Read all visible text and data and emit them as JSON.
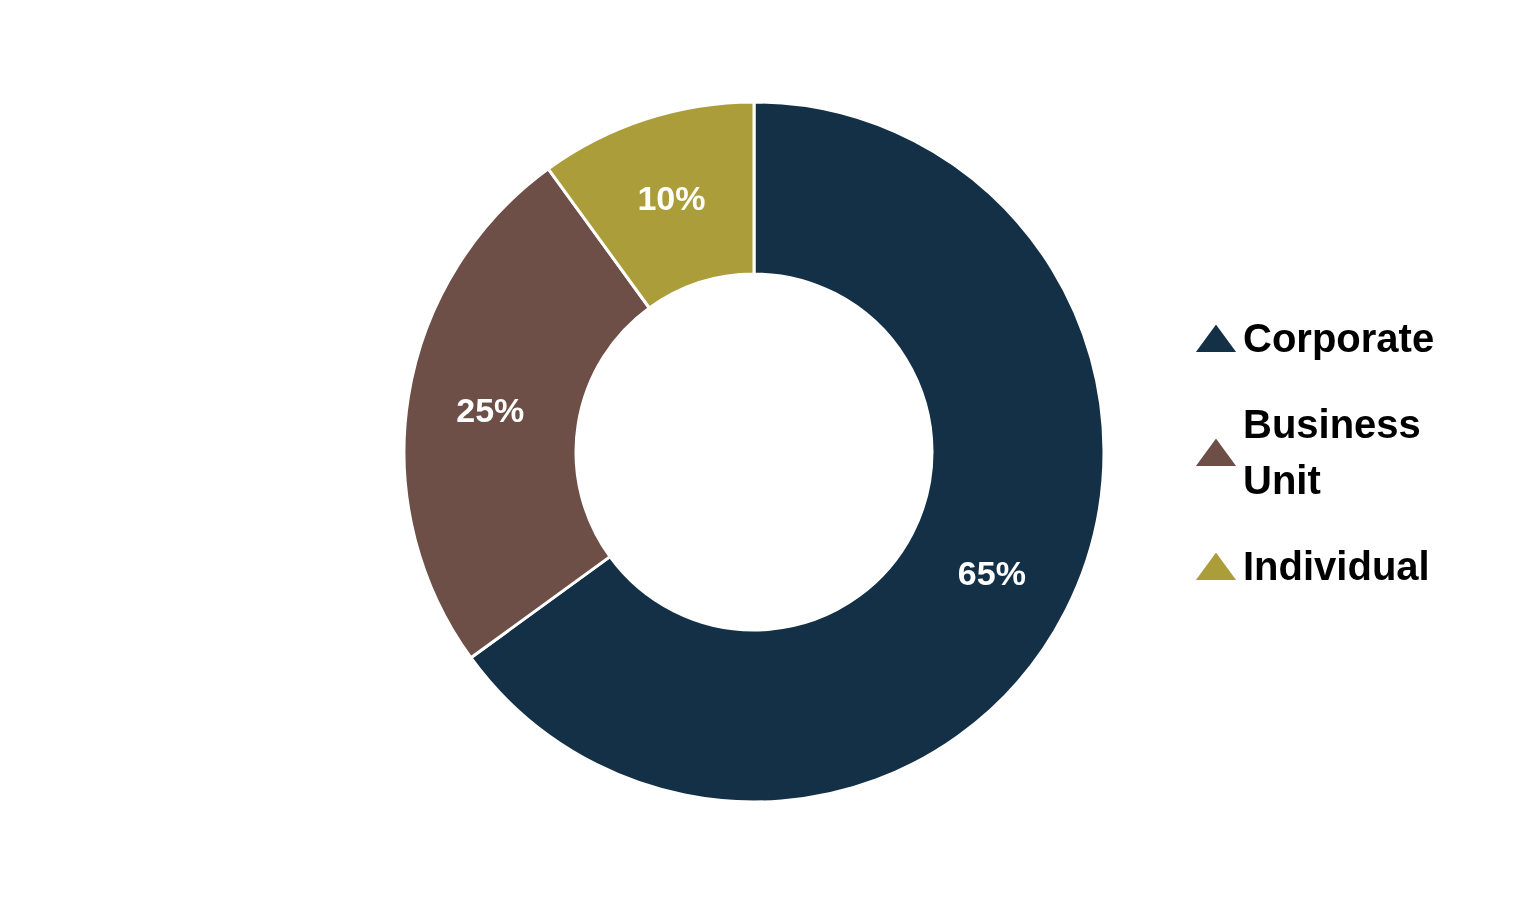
{
  "chart_data": {
    "type": "donut",
    "categories": [
      "Corporate",
      "Business Unit",
      "Individual"
    ],
    "values": [
      65,
      25,
      10
    ],
    "colors": [
      "#143047",
      "#6e4f47",
      "#ab9d3a"
    ],
    "value_labels": [
      "65%",
      "25%",
      "10%"
    ],
    "legend": "right"
  }
}
